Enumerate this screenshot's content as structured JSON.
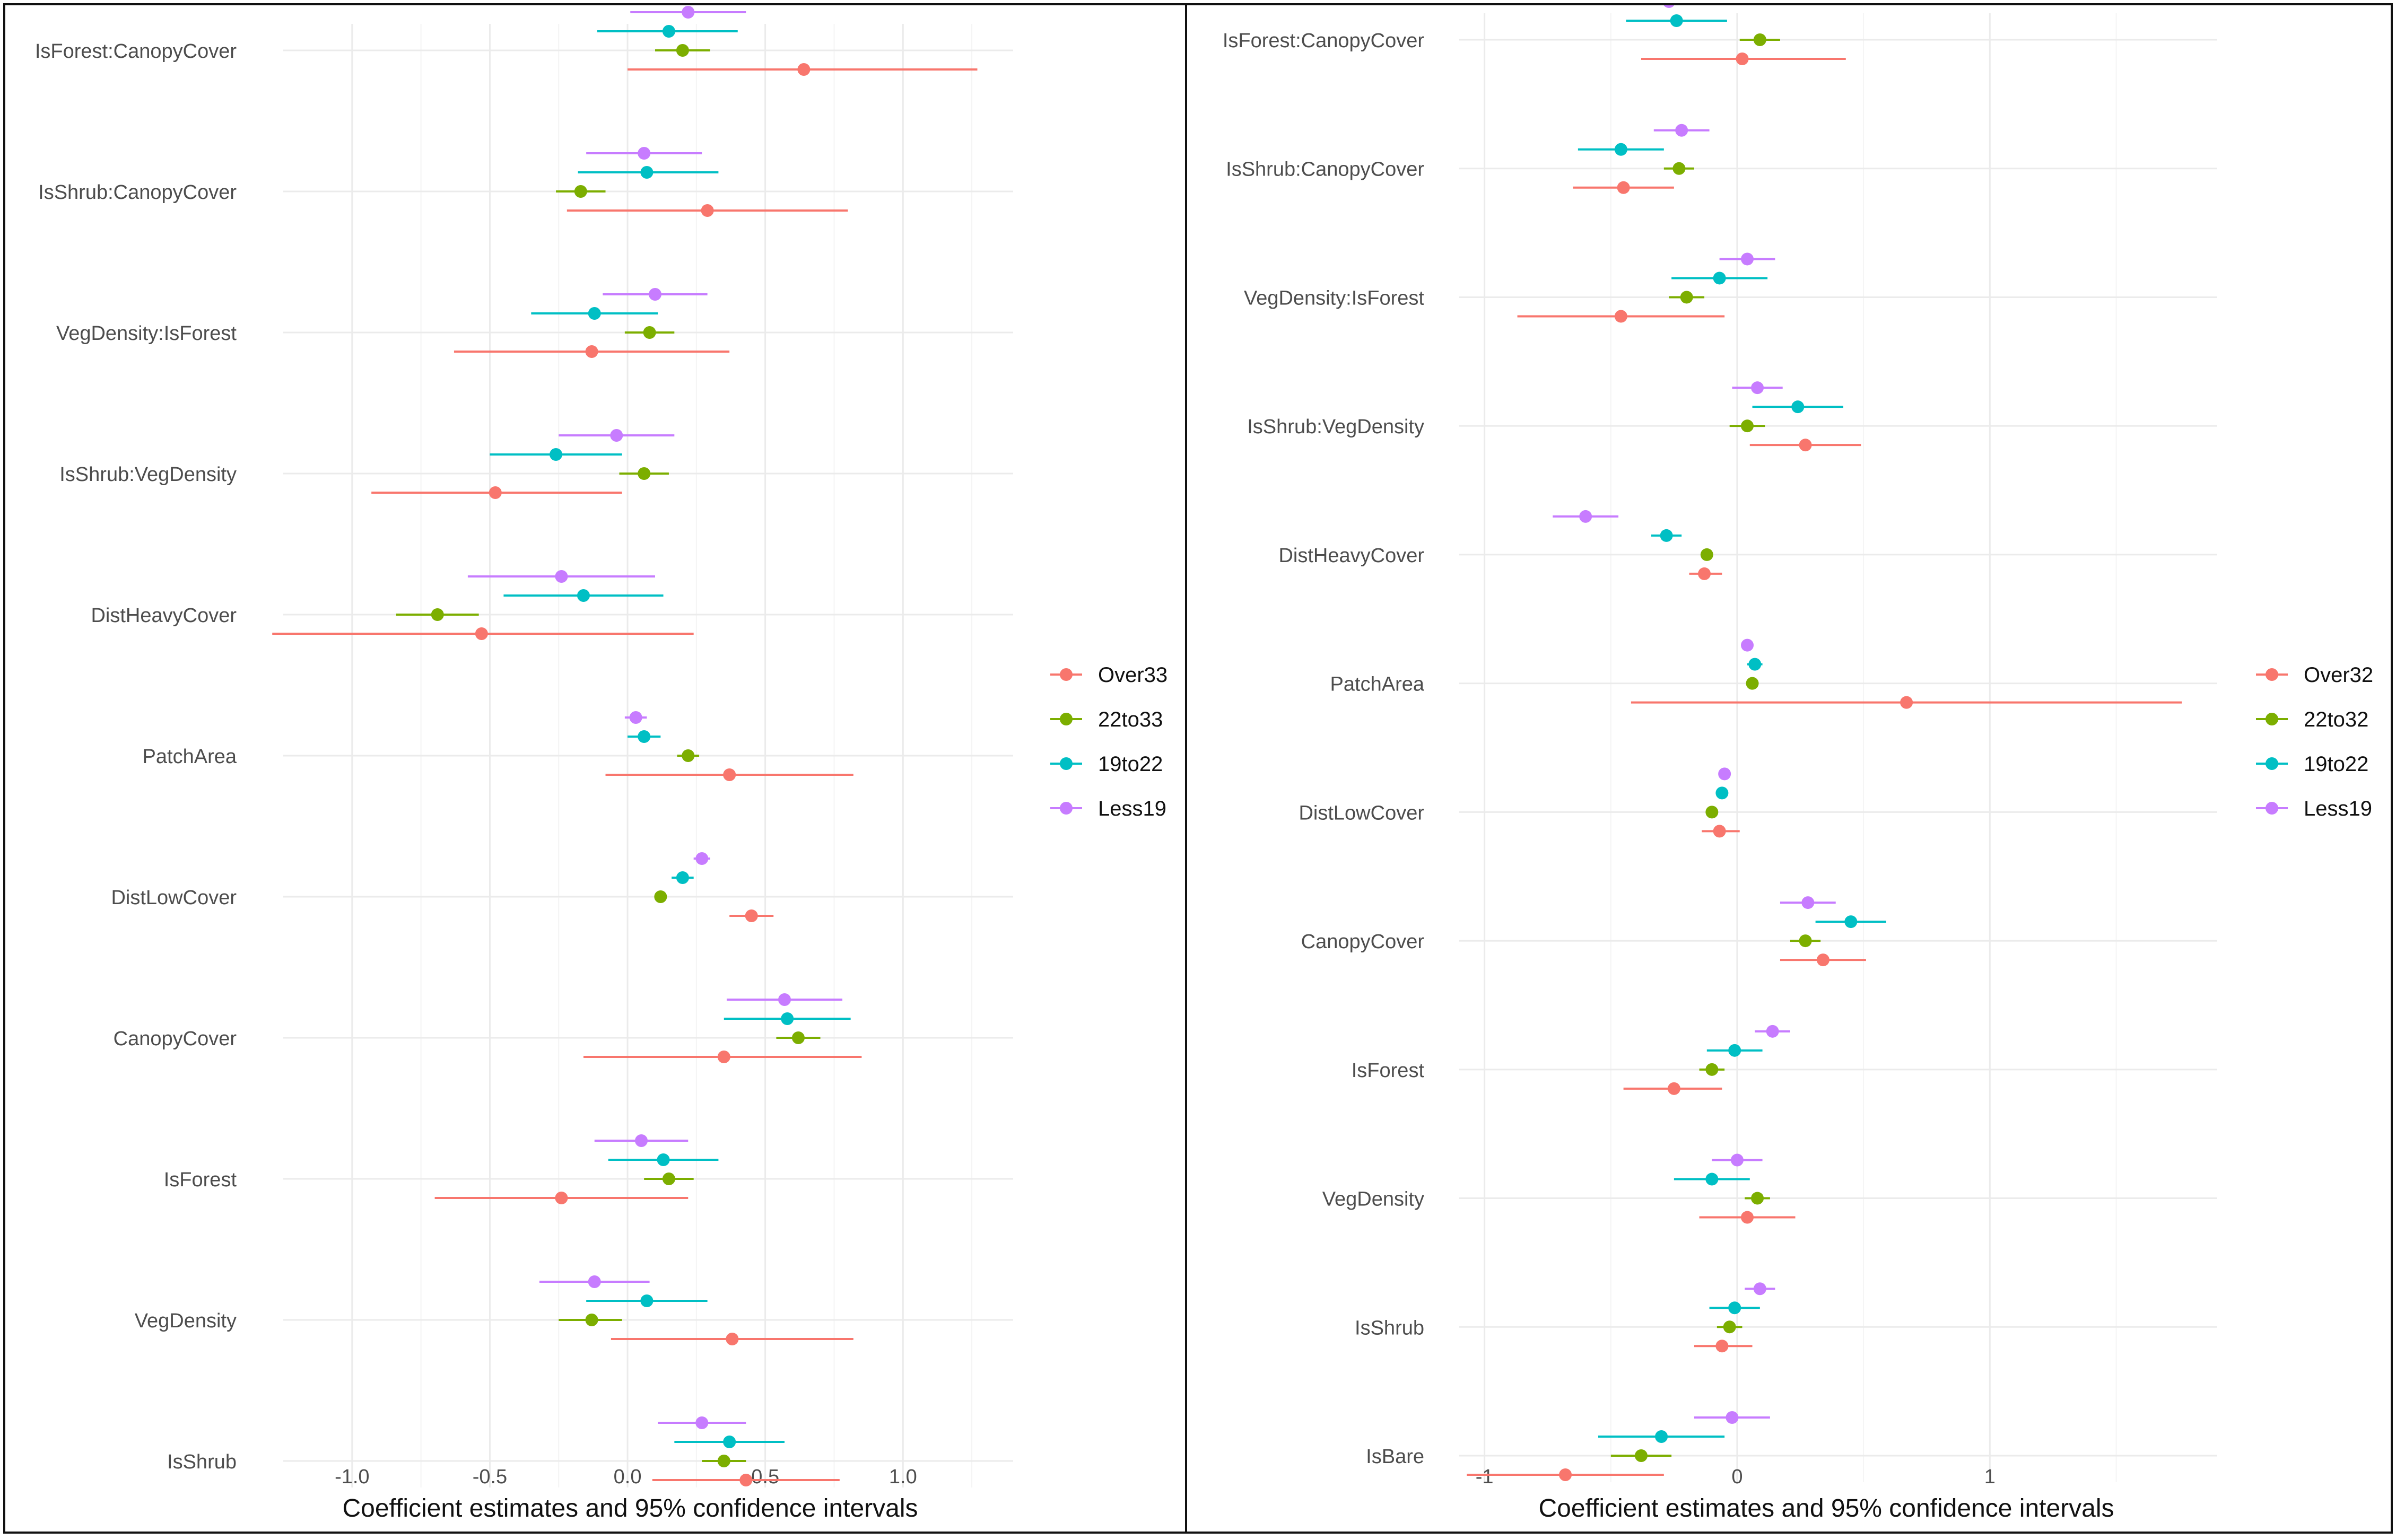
{
  "chart_data": [
    {
      "type": "dot-errorbar",
      "xlabel": "Coefficient estimates and 95% confidence intervals",
      "xlim": [
        -1.25,
        1.4
      ],
      "xticks": [
        -1.0,
        -0.5,
        0.0,
        0.5,
        1.0
      ],
      "xtick_labels": [
        "-1.0",
        "-0.5",
        "0.0",
        "0.5",
        "1.0"
      ],
      "categories": [
        "IsForest:CanopyCover",
        "IsShrub:CanopyCover",
        "VegDensity:IsForest",
        "IsShrub:VegDensity",
        "DistHeavyCover",
        "PatchArea",
        "DistLowCover",
        "CanopyCover",
        "IsForest",
        "VegDensity",
        "IsShrub"
      ],
      "legend_position": "right",
      "series": [
        {
          "name": "Over33",
          "color": "#F8766D",
          "values": [
            0.64,
            0.29,
            -0.13,
            -0.48,
            -0.53,
            0.37,
            0.45,
            0.35,
            -0.24,
            0.38,
            0.43
          ],
          "lower": [
            0.0,
            -0.22,
            -0.63,
            -0.93,
            -1.29,
            -0.08,
            0.37,
            -0.16,
            -0.7,
            -0.06,
            0.09
          ],
          "upper": [
            1.27,
            0.8,
            0.37,
            -0.02,
            0.24,
            0.82,
            0.53,
            0.85,
            0.22,
            0.82,
            0.77
          ]
        },
        {
          "name": "22to33",
          "color": "#7CAE00",
          "values": [
            0.2,
            -0.17,
            0.08,
            0.06,
            -0.69,
            0.22,
            0.12,
            0.62,
            0.15,
            -0.13,
            0.35
          ],
          "lower": [
            0.1,
            -0.26,
            -0.01,
            -0.03,
            -0.84,
            0.18,
            0.11,
            0.54,
            0.06,
            -0.25,
            0.27
          ],
          "upper": [
            0.3,
            -0.08,
            0.17,
            0.15,
            -0.54,
            0.26,
            0.13,
            0.7,
            0.24,
            -0.02,
            0.43
          ]
        },
        {
          "name": "19to22",
          "color": "#00BFC4",
          "values": [
            0.15,
            0.07,
            -0.12,
            -0.26,
            -0.16,
            0.06,
            0.2,
            0.58,
            0.13,
            0.07,
            0.37
          ],
          "lower": [
            -0.11,
            -0.18,
            -0.35,
            -0.5,
            -0.45,
            0.0,
            0.16,
            0.35,
            -0.07,
            -0.15,
            0.17
          ],
          "upper": [
            0.4,
            0.33,
            0.11,
            -0.02,
            0.13,
            0.12,
            0.24,
            0.81,
            0.33,
            0.29,
            0.57
          ]
        },
        {
          "name": "Less19",
          "color": "#C77CFF",
          "values": [
            0.22,
            0.06,
            0.1,
            -0.04,
            -0.24,
            0.03,
            0.27,
            0.57,
            0.05,
            -0.12,
            0.27
          ],
          "lower": [
            0.01,
            -0.15,
            -0.09,
            -0.25,
            -0.58,
            -0.01,
            0.24,
            0.36,
            -0.12,
            -0.32,
            0.11
          ],
          "upper": [
            0.43,
            0.27,
            0.29,
            0.17,
            0.1,
            0.07,
            0.3,
            0.78,
            0.22,
            0.08,
            0.43
          ]
        }
      ]
    },
    {
      "type": "dot-errorbar",
      "xlabel": "Coefficient estimates and 95% confidence intervals",
      "xlim": [
        -1.1,
        1.9
      ],
      "xticks": [
        -1,
        0,
        1
      ],
      "xtick_labels": [
        "-1",
        "0",
        "1"
      ],
      "categories": [
        "IsForest:CanopyCover",
        "IsShrub:CanopyCover",
        "VegDensity:IsForest",
        "IsShrub:VegDensity",
        "DistHeavyCover",
        "PatchArea",
        "DistLowCover",
        "CanopyCover",
        "IsForest",
        "VegDensity",
        "IsShrub",
        "IsBare"
      ],
      "legend_position": "right",
      "series": [
        {
          "name": "Over32",
          "color": "#F8766D",
          "values": [
            0.02,
            -0.45,
            -0.46,
            0.27,
            -0.13,
            0.67,
            -0.07,
            0.34,
            -0.25,
            0.04,
            -0.06,
            -0.68
          ],
          "lower": [
            -0.38,
            -0.65,
            -0.87,
            0.05,
            -0.19,
            -0.42,
            -0.14,
            0.17,
            -0.45,
            -0.15,
            -0.17,
            -1.07
          ],
          "upper": [
            0.43,
            -0.25,
            -0.05,
            0.49,
            -0.06,
            1.76,
            0.01,
            0.51,
            -0.06,
            0.23,
            0.06,
            -0.29
          ]
        },
        {
          "name": "22to32",
          "color": "#7CAE00",
          "values": [
            0.09,
            -0.23,
            -0.2,
            0.04,
            -0.12,
            0.06,
            -0.1,
            0.27,
            -0.1,
            0.08,
            -0.03,
            -0.38
          ],
          "lower": [
            0.01,
            -0.29,
            -0.27,
            -0.03,
            -0.13,
            0.05,
            -0.11,
            0.21,
            -0.15,
            0.03,
            -0.08,
            -0.5
          ],
          "upper": [
            0.17,
            -0.17,
            -0.13,
            0.11,
            -0.11,
            0.07,
            -0.09,
            0.33,
            -0.05,
            0.13,
            0.02,
            -0.26
          ]
        },
        {
          "name": "19to22",
          "color": "#00BFC4",
          "values": [
            -0.24,
            -0.46,
            -0.07,
            0.24,
            -0.28,
            0.07,
            -0.06,
            0.45,
            -0.01,
            -0.1,
            -0.01,
            -0.3
          ],
          "lower": [
            -0.44,
            -0.63,
            -0.26,
            0.06,
            -0.34,
            0.04,
            -0.08,
            0.31,
            -0.12,
            -0.25,
            -0.11,
            -0.55
          ],
          "upper": [
            -0.04,
            -0.29,
            0.12,
            0.42,
            -0.22,
            0.1,
            -0.04,
            0.59,
            0.1,
            0.05,
            0.09,
            -0.05
          ]
        },
        {
          "name": "Less19",
          "color": "#C77CFF",
          "values": [
            -0.27,
            -0.22,
            0.04,
            0.08,
            -0.6,
            0.04,
            -0.05,
            0.28,
            0.14,
            0.0,
            0.09,
            -0.02
          ],
          "lower": [
            -0.37,
            -0.33,
            -0.07,
            -0.02,
            -0.73,
            0.02,
            -0.07,
            0.17,
            0.07,
            -0.1,
            0.03,
            -0.17
          ],
          "upper": [
            -0.17,
            -0.11,
            0.15,
            0.18,
            -0.47,
            0.06,
            -0.03,
            0.39,
            0.21,
            0.1,
            0.15,
            0.13
          ]
        }
      ]
    }
  ]
}
